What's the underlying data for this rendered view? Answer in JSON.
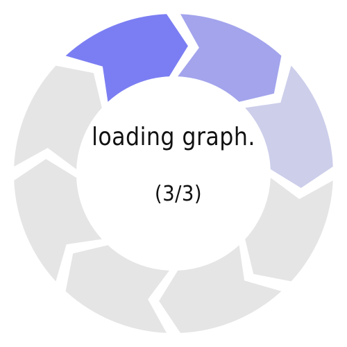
{
  "loader": {
    "title": "loading graph.",
    "progress": "(3/3)",
    "segment_count": 8,
    "active_colors": [
      "#7b7ef2",
      "#a3a4ec",
      "#ccceea"
    ],
    "inactive_color": "#e5e5e5"
  }
}
